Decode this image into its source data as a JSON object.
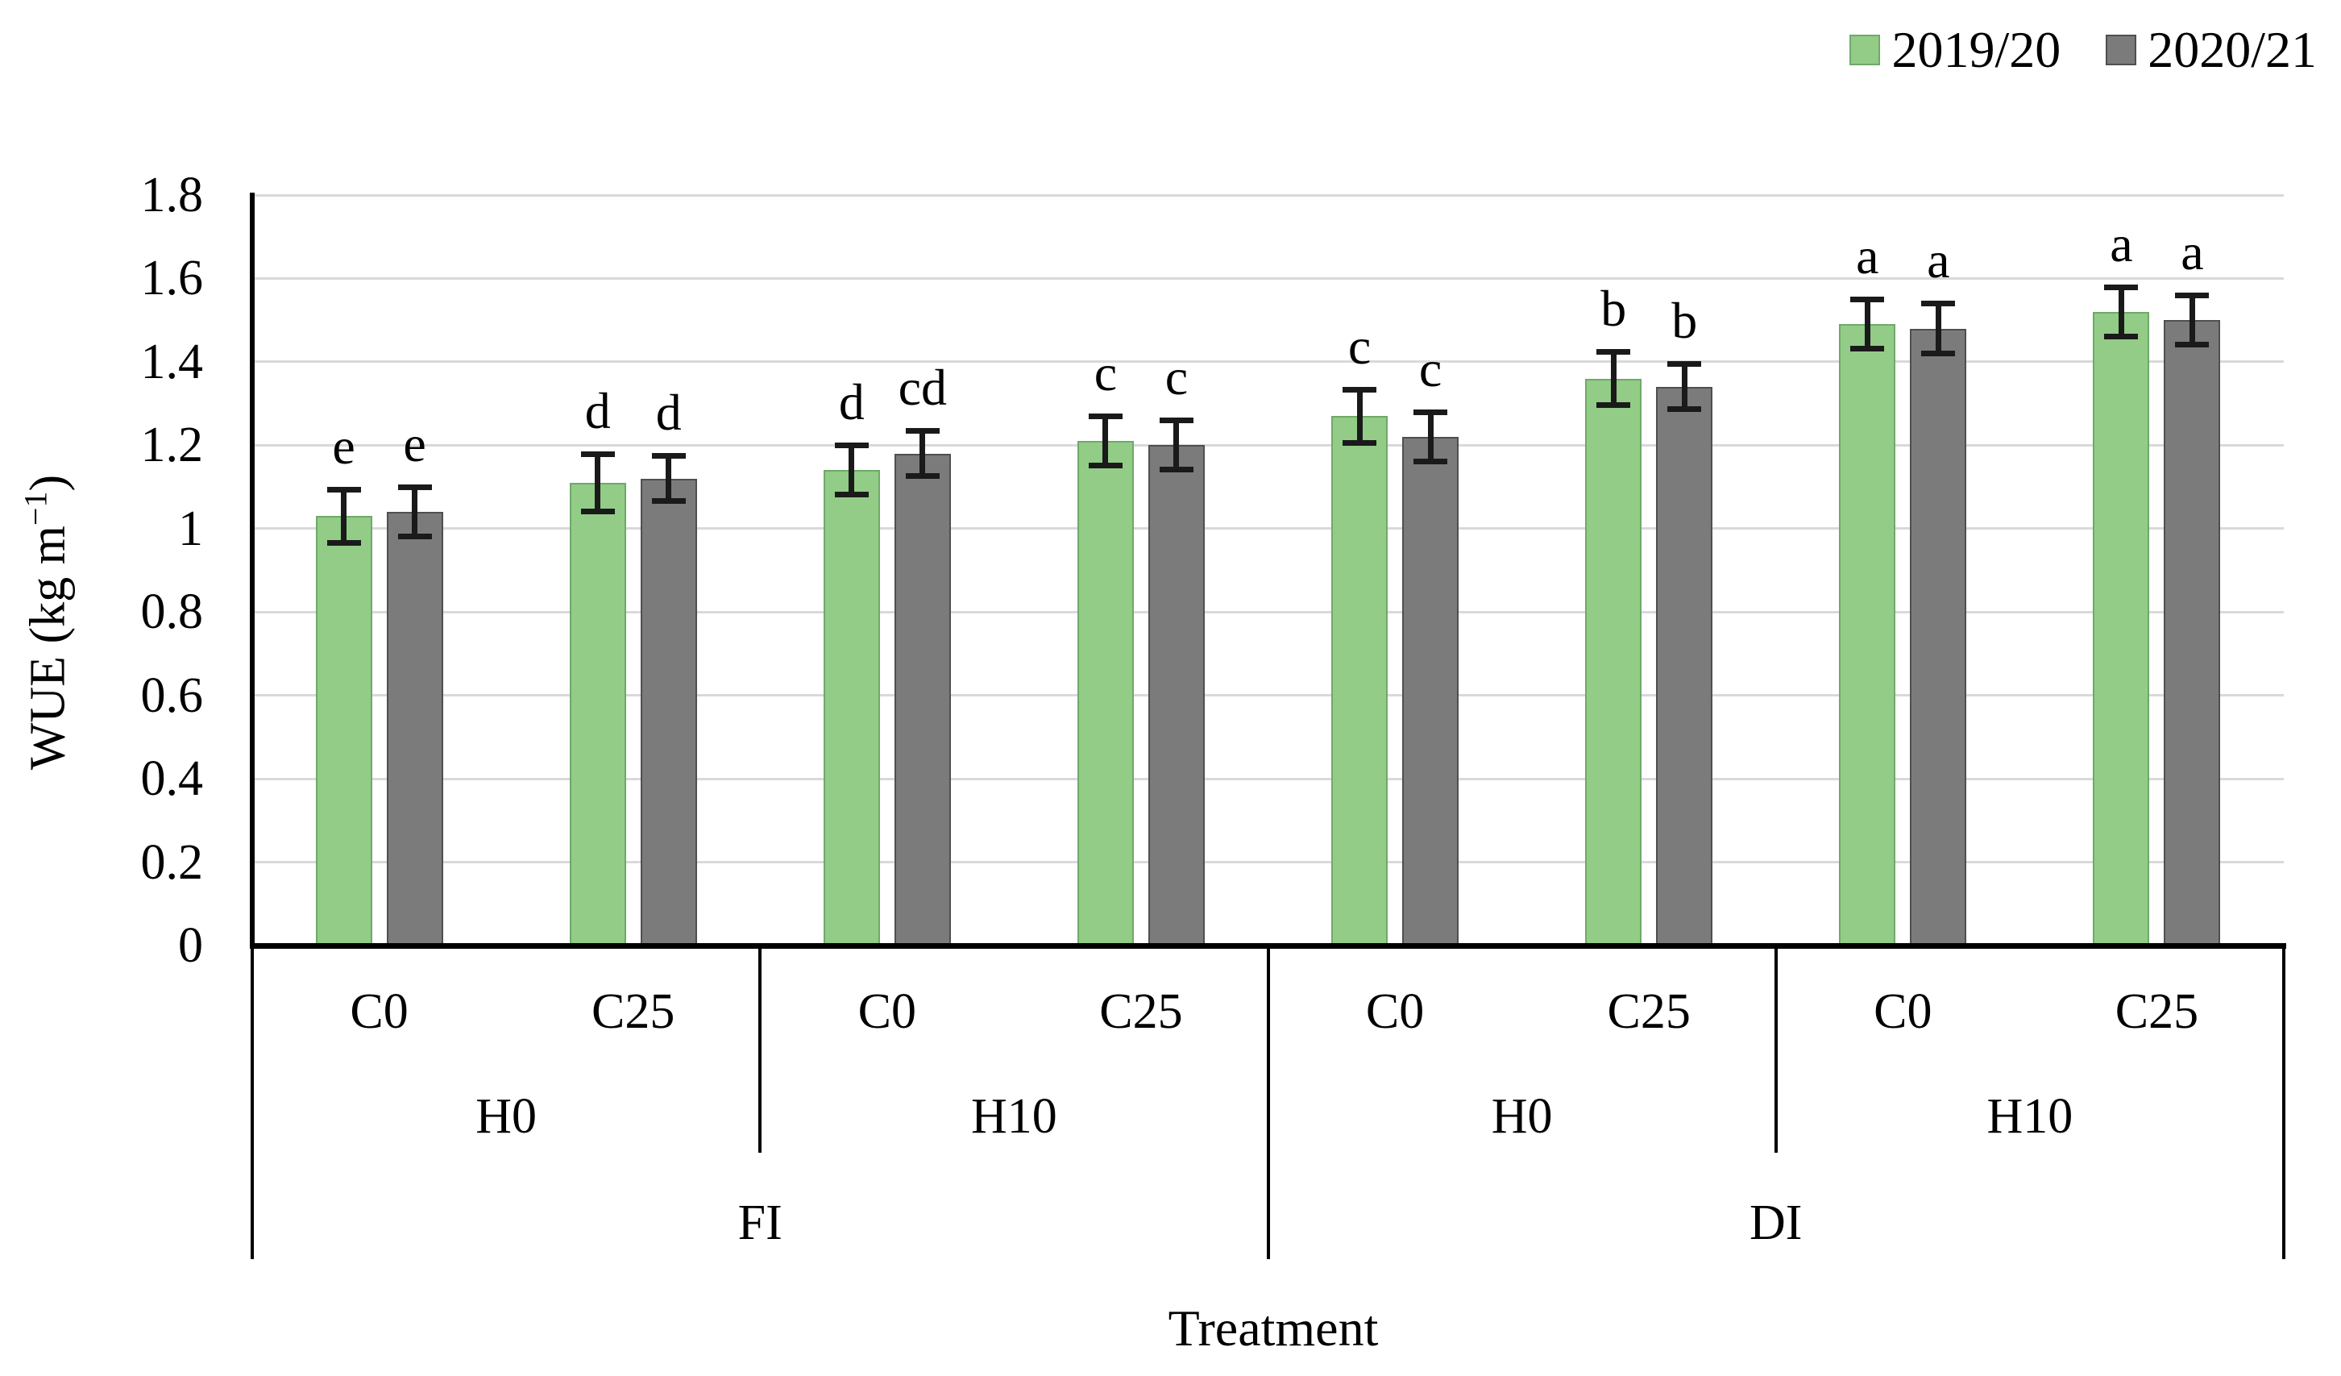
{
  "figure": {
    "background": "#ffffff"
  },
  "legend": {
    "items": [
      {
        "label": "2019/20",
        "color": "#92CC87",
        "border": "#6FA968"
      },
      {
        "label": "2020/21",
        "color": "#7B7B7B",
        "border": "#4F4F4F"
      }
    ]
  },
  "y_axis": {
    "title_main": "WUE (kg m",
    "title_sup": "−1",
    "title_close": ")",
    "tick_labels": [
      "0",
      "0.2",
      "0.4",
      "0.6",
      "0.8",
      "1",
      "1.2",
      "1.4",
      "1.6",
      "1.8"
    ],
    "min": 0,
    "max": 1.8,
    "step": 0.2
  },
  "x_axis": {
    "title": "Treatment",
    "level1_labels": [
      "C0",
      "C25",
      "C0",
      "C25",
      "C0",
      "C25",
      "C0",
      "C25"
    ],
    "level2_labels": [
      "H0",
      "H10",
      "H0",
      "H10"
    ],
    "level3_labels": [
      "FI",
      "DI"
    ]
  },
  "chart_data": {
    "type": "bar",
    "title": "",
    "xlabel": "Treatment",
    "ylabel": "WUE (kg m-1)",
    "ylim": [
      0,
      1.8
    ],
    "ytick_step": 0.2,
    "grid": true,
    "grid_color": "#D9D9D9",
    "legend_position": "top-right",
    "group_structure": {
      "irrigation": [
        "FI",
        "DI"
      ],
      "hydrogel": [
        "H0",
        "H10"
      ],
      "compost": [
        "C0",
        "C25"
      ]
    },
    "categories": [
      "FI-H0-C0",
      "FI-H0-C25",
      "FI-H10-C0",
      "FI-H10-C25",
      "DI-H0-C0",
      "DI-H0-C25",
      "DI-H10-C0",
      "DI-H10-C25"
    ],
    "series": [
      {
        "name": "2019/20",
        "color": "#92CC87",
        "border_color": "#6FA968",
        "values": [
          1.03,
          1.11,
          1.14,
          1.21,
          1.27,
          1.36,
          1.49,
          1.52
        ],
        "errors": [
          0.065,
          0.07,
          0.06,
          0.06,
          0.065,
          0.065,
          0.06,
          0.06
        ],
        "sig_letters": [
          "e",
          "d",
          "d",
          "c",
          "c",
          "b",
          "a",
          "a"
        ]
      },
      {
        "name": "2020/21",
        "color": "#7B7B7B",
        "border_color": "#4F4F4F",
        "values": [
          1.04,
          1.12,
          1.18,
          1.2,
          1.22,
          1.34,
          1.48,
          1.5
        ],
        "errors": [
          0.06,
          0.055,
          0.055,
          0.06,
          0.06,
          0.055,
          0.06,
          0.06
        ],
        "sig_letters": [
          "e",
          "d",
          "cd",
          "c",
          "c",
          "b",
          "a",
          "a"
        ]
      }
    ]
  }
}
